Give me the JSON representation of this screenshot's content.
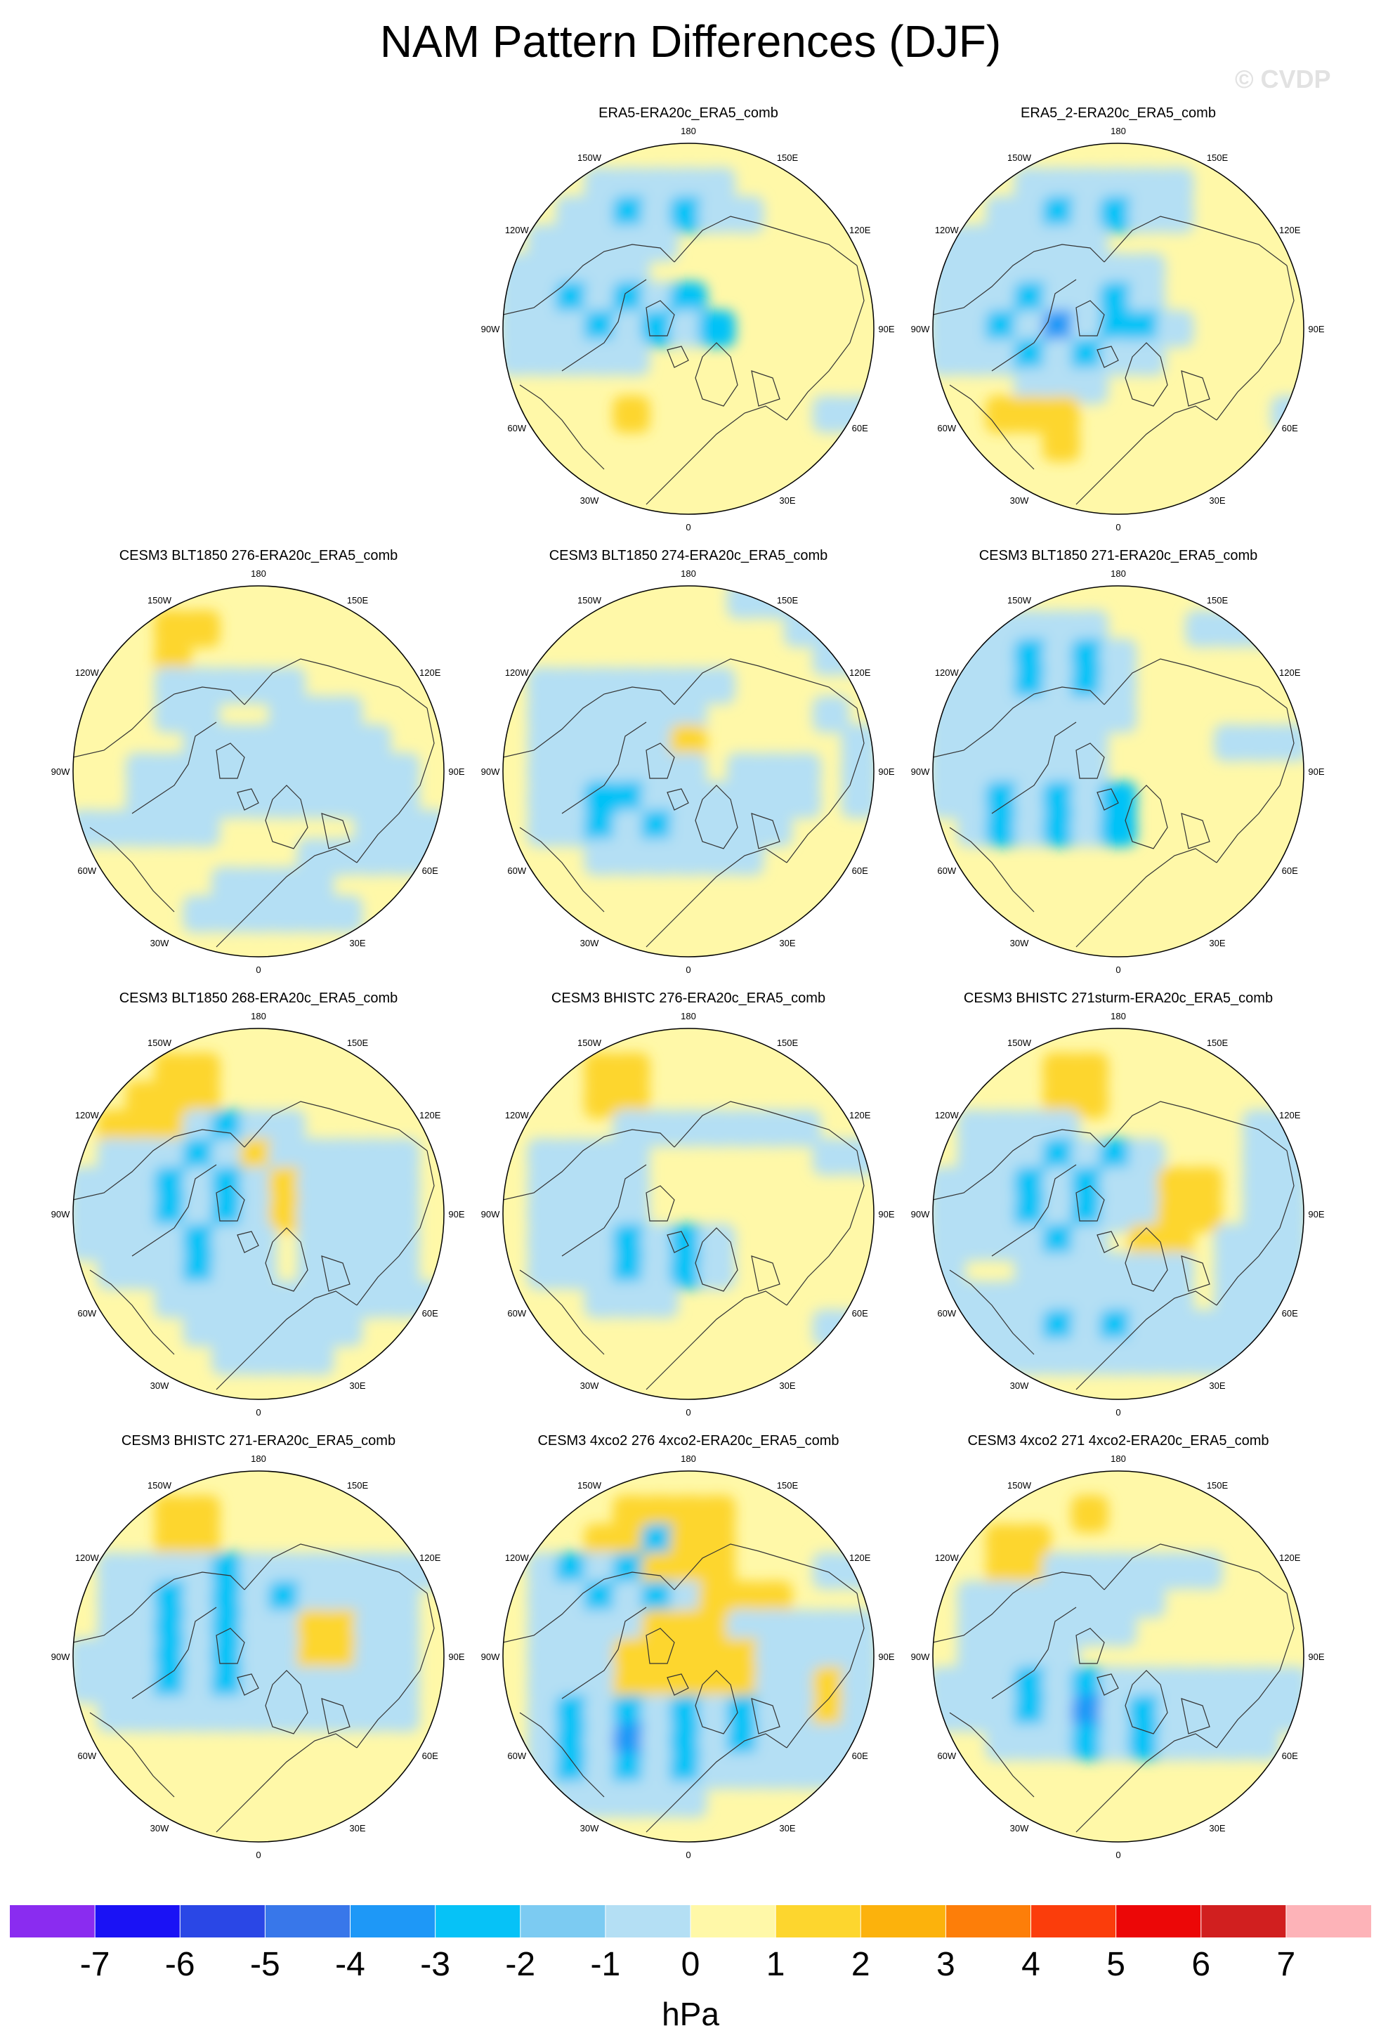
{
  "page": {
    "title": "NAM Pattern Differences (DJF)",
    "copyright": "© CVDP"
  },
  "colors": {
    "land_outline": "#333333",
    "circle_outline": "#000000",
    "palette": [
      "#8a2cf0",
      "#1a12f5",
      "#2a47e6",
      "#3877ea",
      "#1e98f7",
      "#06c2f7",
      "#7ccbf2",
      "#b4dff4",
      "#fff8a8",
      "#fdd62e",
      "#fcb20c",
      "#fd7e09",
      "#fb3d0b",
      "#ec0707",
      "#d11f1f",
      "#fdb3b8"
    ]
  },
  "chart_data": {
    "type": "heatmap",
    "projection": "north polar stereographic",
    "units": "hPa",
    "colorbar": {
      "label": "hPa",
      "levels": [
        -7,
        -6,
        -5,
        -4,
        -3,
        -2,
        -1,
        0,
        1,
        2,
        3,
        4,
        5,
        6,
        7
      ],
      "tick_labels": [
        "-7",
        "-6",
        "-5",
        "-4",
        "-3",
        "-2",
        "-1",
        "0",
        "1",
        "2",
        "3",
        "4",
        "5",
        "6",
        "7"
      ],
      "bin_count": 16
    },
    "lon_labels": [
      "180",
      "150E",
      "120E",
      "90E",
      "60E",
      "30E",
      "0",
      "30W",
      "60W",
      "90W",
      "120W",
      "150W"
    ],
    "panels": [
      {
        "title": "ERA5-ERA20c_ERA5_comb",
        "grid": [
          "0000000000000",
          "000-----00000",
          "00--2-2--0000",
          "0-----0000000",
          "-----00000000",
          "--2-2-2000000",
          "---2-2-200000",
          "-----00000000",
          "0000000000000",
          "00001000000--",
          "0000000000000",
          "0000000000000",
          "0000000000000"
        ]
      },
      {
        "title": "ERA5_2-ERA20c_ERA5_comb",
        "grid": [
          "0000000000000",
          "000------0000",
          "00--2-2--0000",
          "------0000000",
          "--------00000",
          "---2--2-00000",
          "--2-3-22-0000",
          "---2-2--00000",
          "000---0000000",
          "001110000000-",
          "0000100000000",
          "0000000000000",
          "0000000000000"
        ]
      },
      {
        "title": "CESM3 BLT1850 276-ERA20c_ERA5_comb",
        "grid": [
          "0000000000000",
          "0001100000000",
          "0001000000000",
          "000-----00000",
          "000--00---000",
          "0000-------00",
          "00----------0",
          "00----------0",
          "-----00000---",
          "00000000-----",
          "00000----0000",
          "0000------000",
          "0000000000000"
        ]
      },
      {
        "title": "CESM3 BLT1850 274-ERA20c_ERA5_comb",
        "grid": [
          "00000000-----",
          "0000000000---",
          "00000000000--",
          "0-------00000",
          "0------0000-0",
          "0-----100000-",
          "0------0---0-",
          "0--22------0-",
          "0--2-2----000",
          "000------0000",
          "0000000000000",
          "0000000000000",
          "0000000000000"
        ]
      },
      {
        "title": "CESM3 BLT1850 271-ERA20c_ERA5_comb",
        "grid": [
          "0000000000000",
          "------000----",
          "---2-2-000000",
          "---2-2-000000",
          "-------000000",
          "------0000---",
          "------0000000",
          "--2-2-2000000",
          "0-2-2-2000000",
          "0000000000000",
          "0000000000000",
          "0000000000000",
          "0000000000000"
        ]
      },
      {
        "title": "CESM3 BLT1850 268-ERA20c_ERA5_comb",
        "grid": [
          "0000000000000",
          "0001100000000",
          "0011100000000",
          "0111-2--00000",
          "0---2-1-----0",
          "---2-2-1----0",
          "---2-2-1----0",
          "----2--0----0",
          "0---2--0----0",
          "000----------",
          "0000------000",
          "00000----0000",
          "0000000000000"
        ]
      },
      {
        "title": "CESM3 BHISTC 276-ERA20c_ERA5_comb",
        "grid": [
          "0000000000000",
          "0001100000000",
          "0001100000000",
          "0000-------00",
          "0----000000--",
          "0----00000000",
          "0----00000000",
          "0---2-2-00000",
          "0---2-2-00000",
          "000---0000000",
          "00000000000--",
          "0000000000000",
          "0000000000000"
        ]
      },
      {
        "title": "CESM3 BHISTC 271sturm-ERA20c_ERA5_comb",
        "grid": [
          "0000000000000",
          "0000110000000",
          "0000110000000",
          "0----000000--",
          "0---2-2-000--",
          "---2-2--110--",
          "---2-2--110--",
          "----2-0110---",
          "-00------0---",
          "---------0---",
          "----2-2------",
          "-------------",
          "0000000000000"
        ]
      },
      {
        "title": "CESM3 BHISTC 271-ERA20c_ERA5_comb",
        "grid": [
          "0000000000000",
          "0001100000000",
          "0001100000000",
          "0----2-------",
          "0--2-2-2----0",
          "0--2-2--11--0",
          "---2-2--11--0",
          "---2-2------0",
          "0-----------0",
          "0000000000000",
          "0000000000000",
          "0000000000000",
          "0000000000000"
        ]
      },
      {
        "title": "CESM3 4xco2 276 4xco2-ERA20c_ERA5_comb",
        "grid": [
          "00000000000--",
          "0000111100000",
          "0001121100000",
          "0-2-2111000--",
          "0--2-2-111000",
          "0----111-----",
          "0---11111----",
          "0---11111--1-",
          "0-2-2-2-2--1-",
          "0-2-3-2-2----",
          "0-2-2-2------",
          "00-----000000",
          "0000000000000"
        ]
      },
      {
        "title": "CESM3 4xco2 271 4xco2-ERA20c_ERA5_comb",
        "grid": [
          "0000000000000",
          "0000010000000",
          "0011000000000",
          "0011------000",
          "0-------00000",
          "0------000000",
          "0----00000000",
          "---2-2-------",
          "---2-3-2-----",
          "00---2-2----0",
          "0000000000000",
          "0000000000000",
          "0000000000000"
        ]
      }
    ]
  }
}
